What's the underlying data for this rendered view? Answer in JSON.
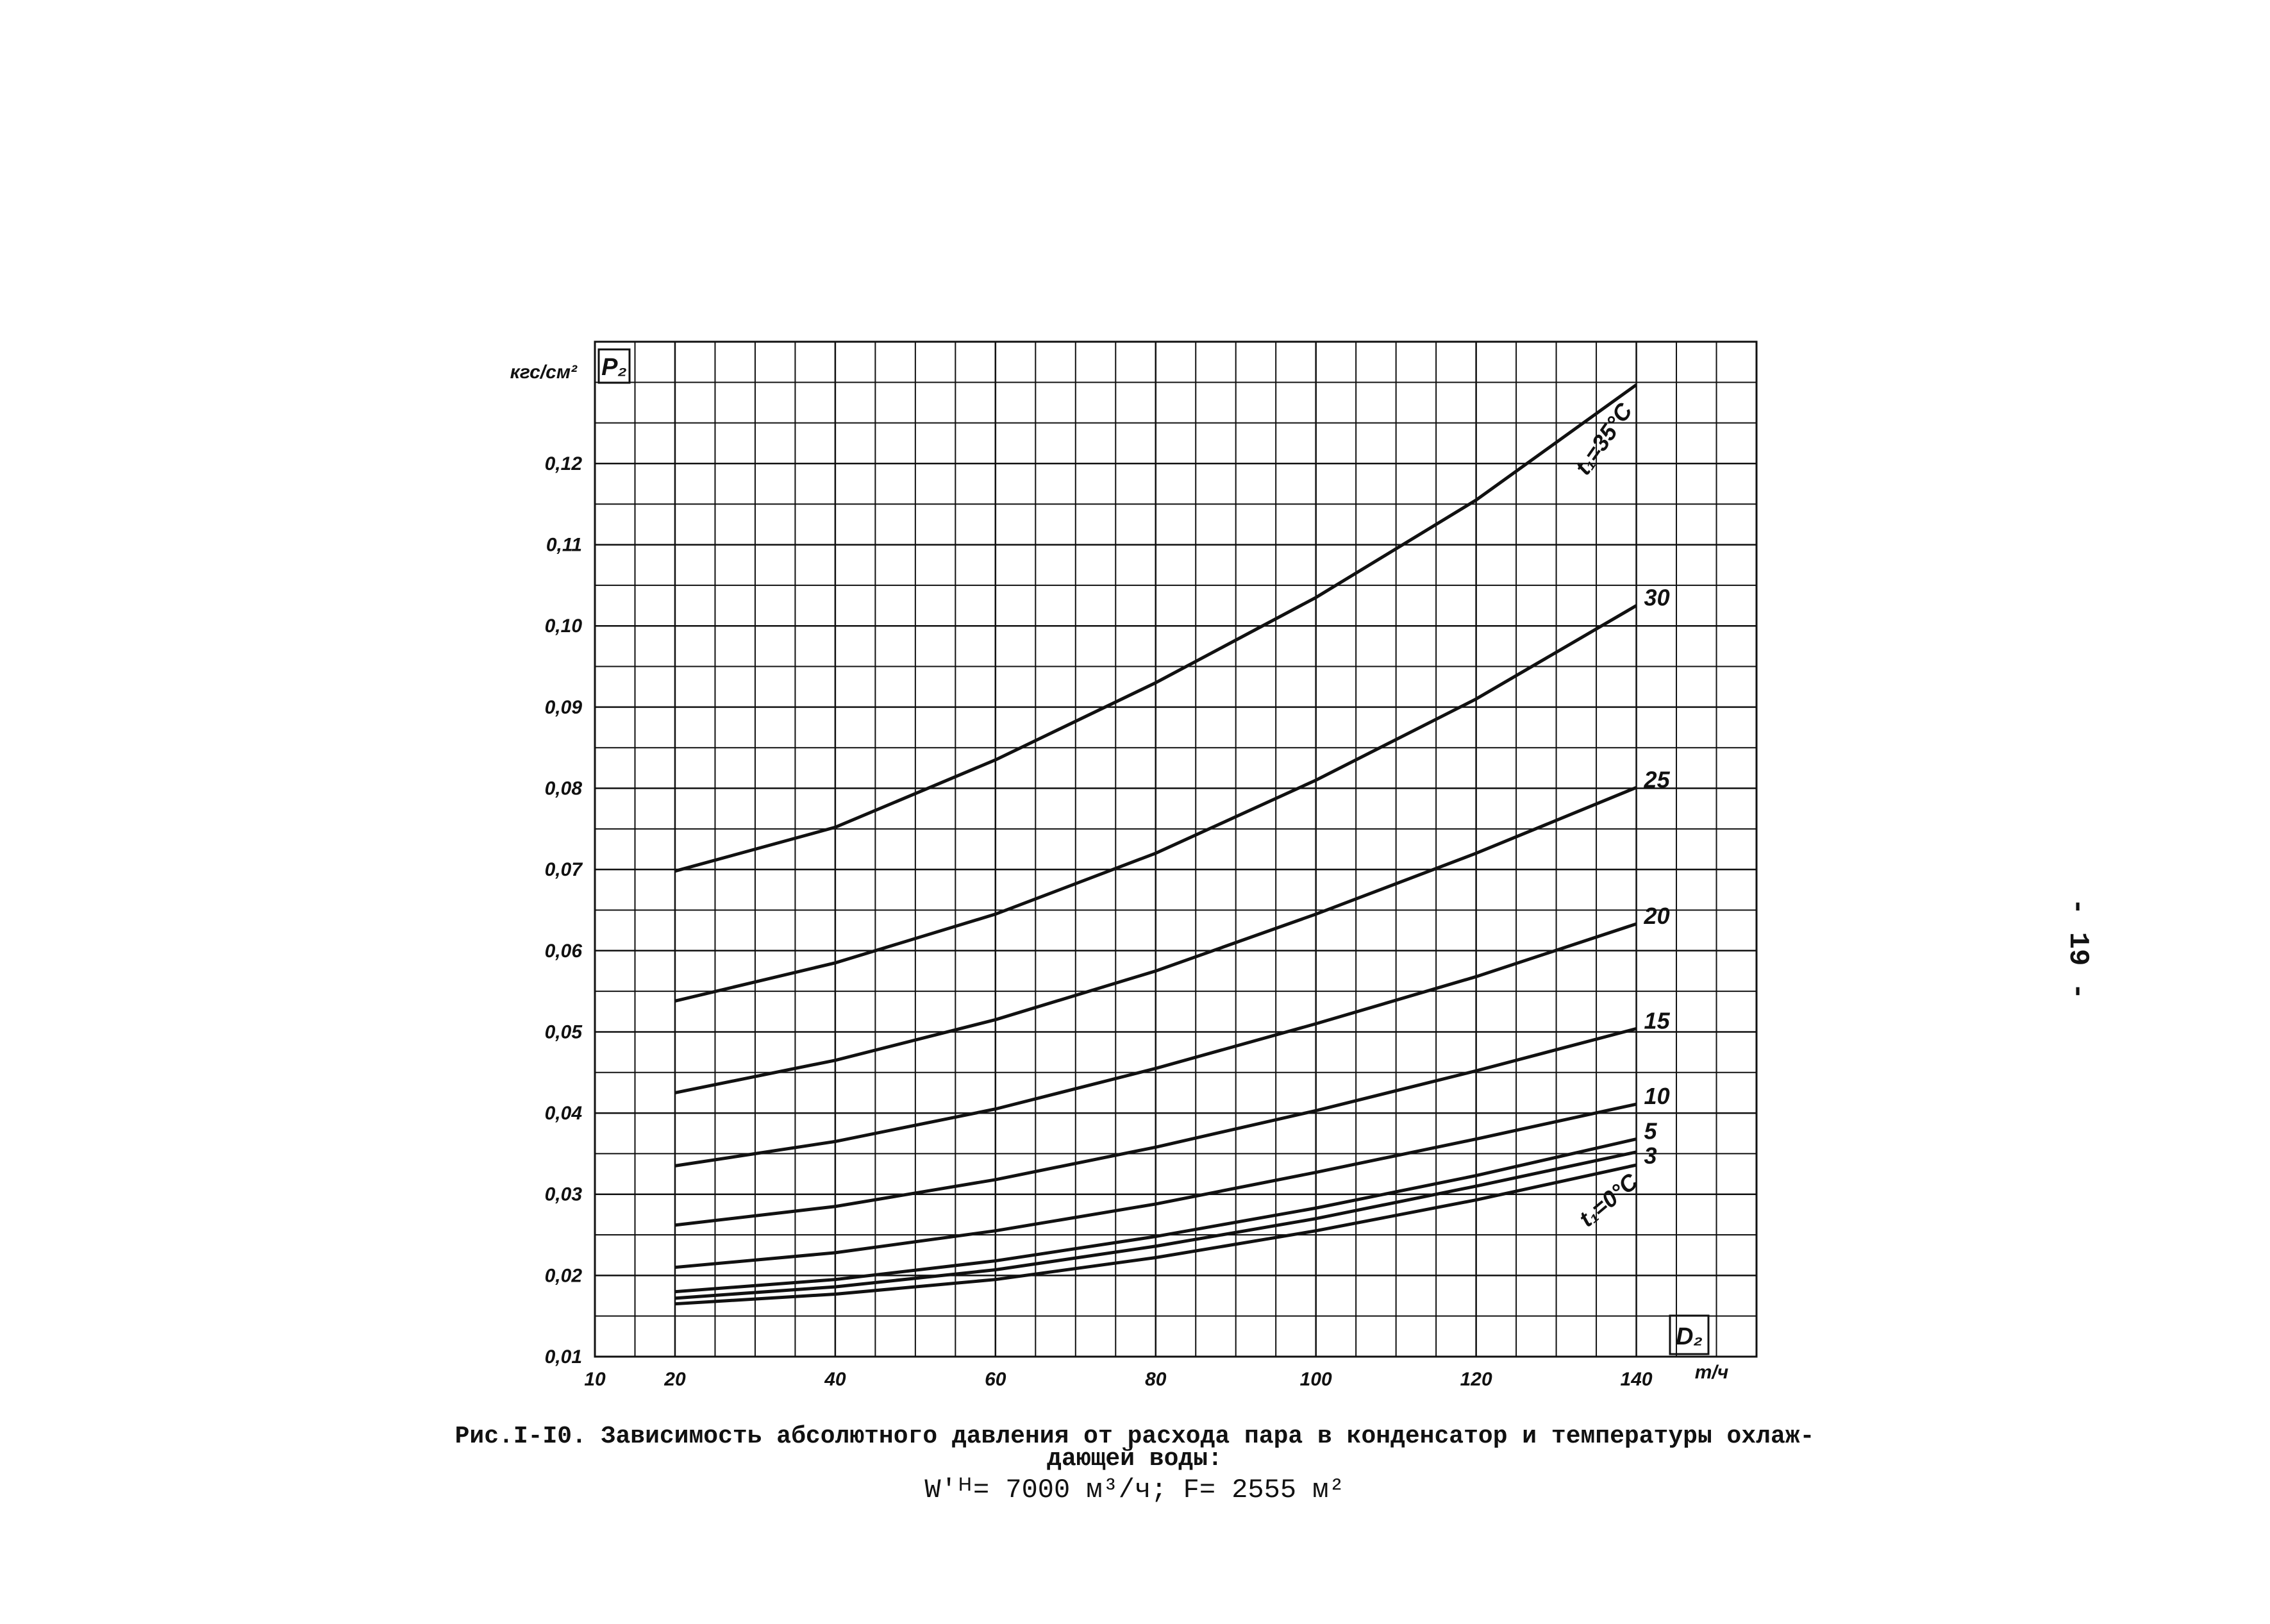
{
  "chart_data": {
    "type": "line",
    "y_label": "кгс/см²",
    "y_symbol": "P₂",
    "x_symbol": "D₂",
    "x_unit": "т/ч",
    "x": [
      20,
      40,
      60,
      80,
      100,
      120,
      140
    ],
    "xlim": [
      10,
      155
    ],
    "ylim": [
      0.01,
      0.135
    ],
    "xticks": [
      10,
      20,
      40,
      60,
      80,
      100,
      120,
      140
    ],
    "yticks": [
      {
        "value": 0.01,
        "label": "0,01"
      },
      {
        "value": 0.02,
        "label": "0,02"
      },
      {
        "value": 0.03,
        "label": "0,03"
      },
      {
        "value": 0.04,
        "label": "0,04"
      },
      {
        "value": 0.05,
        "label": "0,05"
      },
      {
        "value": 0.06,
        "label": "0,06"
      },
      {
        "value": 0.07,
        "label": "0,07"
      },
      {
        "value": 0.08,
        "label": "0,08"
      },
      {
        "value": 0.09,
        "label": "0,09"
      },
      {
        "value": 0.1,
        "label": "0,10"
      },
      {
        "value": 0.11,
        "label": "0,11"
      },
      {
        "value": 0.12,
        "label": "0,12"
      }
    ],
    "grid": true,
    "color": "#111111",
    "series": [
      {
        "name": "t₁=35°C",
        "values": [
          0.0698,
          0.0752,
          0.0835,
          0.093,
          0.1035,
          0.1155,
          0.1297
        ]
      },
      {
        "name": "30",
        "values": [
          0.0538,
          0.0585,
          0.0645,
          0.072,
          0.081,
          0.091,
          0.1025
        ]
      },
      {
        "name": "25",
        "values": [
          0.0425,
          0.0465,
          0.0515,
          0.0575,
          0.0645,
          0.072,
          0.0801
        ]
      },
      {
        "name": "20",
        "values": [
          0.0335,
          0.0365,
          0.0405,
          0.0455,
          0.051,
          0.0568,
          0.0633
        ]
      },
      {
        "name": "15",
        "values": [
          0.0262,
          0.0285,
          0.0318,
          0.0358,
          0.0403,
          0.0452,
          0.0504
        ]
      },
      {
        "name": "10",
        "values": [
          0.021,
          0.0228,
          0.0255,
          0.0288,
          0.0327,
          0.0368,
          0.0411
        ]
      },
      {
        "name": "5",
        "values": [
          0.018,
          0.0195,
          0.0218,
          0.0248,
          0.0283,
          0.0323,
          0.0368
        ]
      },
      {
        "name": "3",
        "values": [
          0.0172,
          0.0186,
          0.0207,
          0.0236,
          0.027,
          0.031,
          0.0352
        ]
      },
      {
        "name": "t₁=0°C",
        "values": [
          0.0165,
          0.0177,
          0.0195,
          0.0222,
          0.0255,
          0.0293,
          0.0336
        ]
      }
    ]
  },
  "caption": {
    "line1": "Рис.I-I0. Зависимость абсолютного давления от расхода пара в конденсатор и температуры охлаж-",
    "line2": "дающей воды:",
    "line3": "W'ᴴ= 7000 м³/ч;    F= 2555 м²"
  },
  "page_number": "- 19 -"
}
